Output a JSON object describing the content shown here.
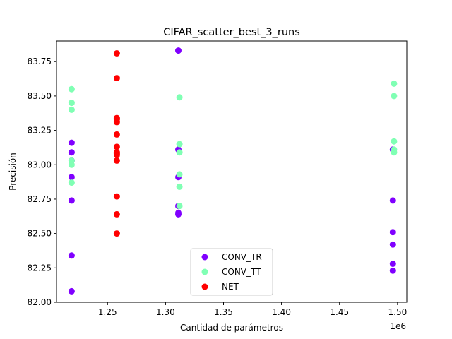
{
  "chart_data": {
    "type": "scatter",
    "title": "CIFAR_scatter_best_3_runs",
    "xlabel": "Cantidad de parámetros",
    "ylabel": "Precisión",
    "x_offset_label": "1e6",
    "xlim": [
      1.206,
      1.508
    ],
    "ylim": [
      82.0,
      83.9
    ],
    "x_ticks": [
      "1.25",
      "1.30",
      "1.35",
      "1.40",
      "1.45",
      "1.50"
    ],
    "x_tick_values": [
      1.25,
      1.3,
      1.35,
      1.4,
      1.45,
      1.5
    ],
    "y_ticks": [
      "82.00",
      "82.25",
      "82.50",
      "82.75",
      "83.00",
      "83.25",
      "83.50",
      "83.75"
    ],
    "y_tick_values": [
      82.0,
      82.25,
      82.5,
      82.75,
      83.0,
      83.25,
      83.5,
      83.75
    ],
    "grid": false,
    "legend_position": "bottom-center",
    "series": [
      {
        "name": "CONV_TR",
        "color": "#8000ff",
        "points": [
          [
            1.219,
            83.16
          ],
          [
            1.219,
            83.09
          ],
          [
            1.219,
            83.03
          ],
          [
            1.219,
            82.91
          ],
          [
            1.219,
            82.74
          ],
          [
            1.219,
            82.34
          ],
          [
            1.219,
            82.08
          ],
          [
            1.311,
            83.83
          ],
          [
            1.311,
            83.11
          ],
          [
            1.311,
            82.91
          ],
          [
            1.311,
            82.7
          ],
          [
            1.311,
            82.65
          ],
          [
            1.311,
            82.64
          ],
          [
            1.496,
            83.11
          ],
          [
            1.496,
            82.74
          ],
          [
            1.496,
            82.51
          ],
          [
            1.496,
            82.42
          ],
          [
            1.496,
            82.28
          ],
          [
            1.496,
            82.23
          ]
        ]
      },
      {
        "name": "CONV_TT",
        "color": "#80ffb4",
        "points": [
          [
            1.219,
            83.55
          ],
          [
            1.219,
            83.45
          ],
          [
            1.219,
            83.4
          ],
          [
            1.219,
            83.03
          ],
          [
            1.219,
            83.0
          ],
          [
            1.219,
            82.87
          ],
          [
            1.312,
            83.49
          ],
          [
            1.312,
            83.15
          ],
          [
            1.312,
            83.09
          ],
          [
            1.312,
            82.93
          ],
          [
            1.312,
            82.84
          ],
          [
            1.312,
            82.7
          ],
          [
            1.497,
            83.59
          ],
          [
            1.497,
            83.5
          ],
          [
            1.497,
            83.17
          ],
          [
            1.497,
            83.11
          ],
          [
            1.497,
            83.09
          ]
        ]
      },
      {
        "name": "NET",
        "color": "#ff0000",
        "points": [
          [
            1.258,
            83.81
          ],
          [
            1.258,
            83.63
          ],
          [
            1.258,
            83.34
          ],
          [
            1.258,
            83.33
          ],
          [
            1.258,
            83.31
          ],
          [
            1.258,
            83.22
          ],
          [
            1.258,
            83.13
          ],
          [
            1.258,
            83.09
          ],
          [
            1.258,
            83.08
          ],
          [
            1.258,
            83.07
          ],
          [
            1.258,
            83.03
          ],
          [
            1.258,
            82.77
          ],
          [
            1.258,
            82.64
          ],
          [
            1.258,
            82.5
          ]
        ]
      }
    ]
  }
}
